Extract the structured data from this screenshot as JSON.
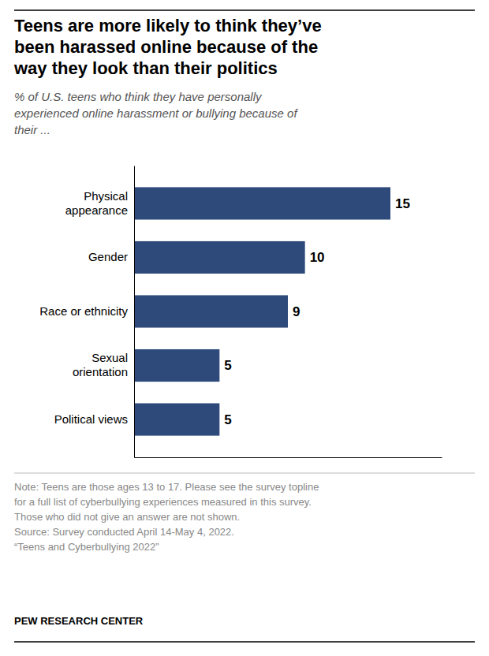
{
  "chart_data": {
    "type": "bar",
    "orientation": "horizontal",
    "title": "Teens are more likely to think they’ve\nbeen harassed online because of the\nway they look than their politics",
    "subtitle": "% of U.S. teens who think they have personally\nexperienced online harassment or bullying because of\ntheir ...",
    "categories": [
      "Physical\nappearance",
      "Gender",
      "Race or ethnicity",
      "Sexual\norientation",
      "Political views"
    ],
    "values": [
      15,
      10,
      9,
      5,
      5
    ],
    "color": "#2E4A7A",
    "xlim": [
      0,
      18
    ],
    "data_labels": true,
    "tick_labels": "y",
    "grid": false,
    "annotations": [
      "Note: Teens are those ages 13 to 17. Please see the survey topline\nfor a full list of cyberbullying experiences measured in this survey.\nThose who did not give an answer are not shown.\nSource: Survey conducted April 14-May 4, 2022.\n“Teens and Cyberbullying 2022”",
      "PEW RESEARCH CENTER"
    ]
  }
}
